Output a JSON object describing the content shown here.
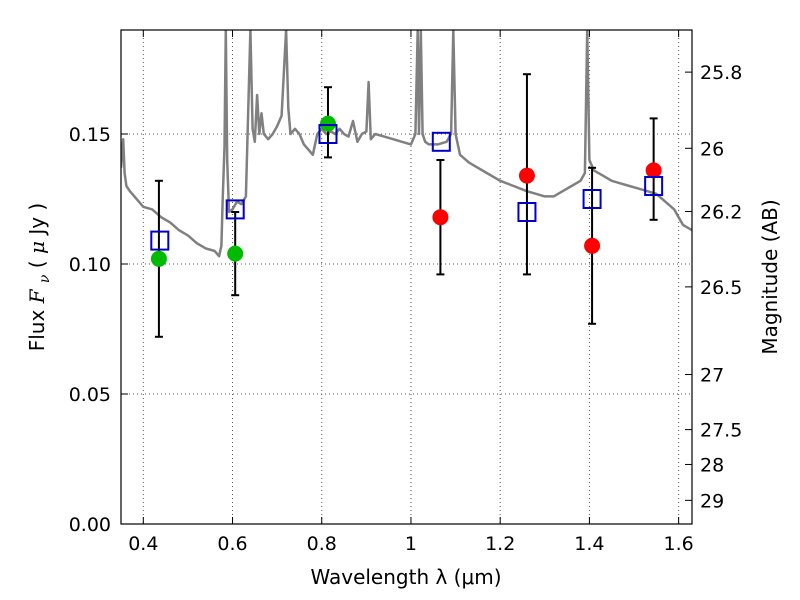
{
  "chart_data": {
    "type": "scatter",
    "xlabel": "Wavelength  λ (μm)",
    "ylabel": "Flux  F_ν  ( μJy )",
    "ylabel_parts": [
      "Flux  ",
      "F",
      "ν",
      "  ( ",
      "μ",
      "Jy )"
    ],
    "y2label": "Magnitude (AB)",
    "xlim": [
      0.35,
      1.63
    ],
    "ylim": [
      0.0,
      0.19
    ],
    "grid": true,
    "x_ticks": [
      0.4,
      0.6,
      0.8,
      1.0,
      1.2,
      1.4,
      1.6
    ],
    "x_tick_labels": [
      "0.4",
      "0.6",
      "0.8",
      "1",
      "1.2",
      "1.4",
      "1.6"
    ],
    "y_ticks": [
      0.0,
      0.05,
      0.1,
      0.15
    ],
    "y_tick_labels": [
      "0.00",
      "0.05",
      "0.10",
      "0.15"
    ],
    "y2_tick_labels": [
      "25.8",
      "26",
      "26.2",
      "26.5",
      "27",
      "27.5",
      "28",
      "29"
    ],
    "y2_tick_flux": [
      0.1738,
      0.1445,
      0.1202,
      0.0912,
      0.0575,
      0.0363,
      0.0229,
      0.0091
    ],
    "colors": {
      "model": "#808080",
      "green_points": "#00bb00",
      "red_points": "#ff0000",
      "model_boxes": "#0000cc",
      "errorbars": "#000000",
      "grid": "#555555"
    },
    "series": [
      {
        "marker": "circle-green",
        "color": "#00bb00",
        "points": [
          {
            "x": 0.435,
            "y": 0.102,
            "err_lo": 0.072,
            "err_hi": 0.132
          },
          {
            "x": 0.606,
            "y": 0.104,
            "err_lo": 0.088,
            "err_hi": 0.12
          },
          {
            "x": 0.814,
            "y": 0.154,
            "err_lo": 0.141,
            "err_hi": 0.168
          }
        ]
      },
      {
        "marker": "circle-red",
        "color": "#ff0000",
        "points": [
          {
            "x": 1.066,
            "y": 0.118,
            "err_lo": 0.096,
            "err_hi": 0.14
          },
          {
            "x": 1.26,
            "y": 0.134,
            "err_lo": 0.096,
            "err_hi": 0.173
          },
          {
            "x": 1.406,
            "y": 0.107,
            "err_lo": 0.077,
            "err_hi": 0.137
          },
          {
            "x": 1.544,
            "y": 0.136,
            "err_lo": 0.117,
            "err_hi": 0.156
          }
        ]
      },
      {
        "marker": "square-open-blue",
        "color": "#0000cc",
        "points": [
          {
            "x": 0.437,
            "y": 0.109
          },
          {
            "x": 0.606,
            "y": 0.121
          },
          {
            "x": 0.814,
            "y": 0.15
          },
          {
            "x": 1.068,
            "y": 0.147
          },
          {
            "x": 1.26,
            "y": 0.12
          },
          {
            "x": 1.406,
            "y": 0.125
          },
          {
            "x": 1.544,
            "y": 0.13
          }
        ]
      }
    ],
    "model_spectrum": {
      "color": "#808080",
      "points": [
        [
          0.35,
          0.137
        ],
        [
          0.355,
          0.148
        ],
        [
          0.358,
          0.135
        ],
        [
          0.362,
          0.13
        ],
        [
          0.37,
          0.128
        ],
        [
          0.38,
          0.126
        ],
        [
          0.39,
          0.124
        ],
        [
          0.4,
          0.122
        ],
        [
          0.42,
          0.121
        ],
        [
          0.44,
          0.118
        ],
        [
          0.46,
          0.116
        ],
        [
          0.48,
          0.113
        ],
        [
          0.5,
          0.111
        ],
        [
          0.52,
          0.108
        ],
        [
          0.54,
          0.106
        ],
        [
          0.56,
          0.105
        ],
        [
          0.57,
          0.103
        ],
        [
          0.575,
          0.107
        ],
        [
          0.578,
          0.125
        ],
        [
          0.582,
          0.145
        ],
        [
          0.585,
          0.19
        ],
        [
          0.588,
          0.14
        ],
        [
          0.592,
          0.12
        ],
        [
          0.6,
          0.121
        ],
        [
          0.61,
          0.124
        ],
        [
          0.62,
          0.123
        ],
        [
          0.63,
          0.126
        ],
        [
          0.64,
          0.19
        ],
        [
          0.645,
          0.152
        ],
        [
          0.65,
          0.147
        ],
        [
          0.655,
          0.165
        ],
        [
          0.66,
          0.15
        ],
        [
          0.665,
          0.158
        ],
        [
          0.67,
          0.15
        ],
        [
          0.68,
          0.148
        ],
        [
          0.69,
          0.15
        ],
        [
          0.7,
          0.153
        ],
        [
          0.71,
          0.157
        ],
        [
          0.72,
          0.19
        ],
        [
          0.725,
          0.16
        ],
        [
          0.73,
          0.15
        ],
        [
          0.74,
          0.152
        ],
        [
          0.75,
          0.15
        ],
        [
          0.76,
          0.146
        ],
        [
          0.77,
          0.144
        ],
        [
          0.78,
          0.142
        ],
        [
          0.79,
          0.15
        ],
        [
          0.8,
          0.152
        ],
        [
          0.81,
          0.15
        ],
        [
          0.82,
          0.151
        ],
        [
          0.83,
          0.15
        ],
        [
          0.84,
          0.152
        ],
        [
          0.85,
          0.15
        ],
        [
          0.86,
          0.149
        ],
        [
          0.87,
          0.155
        ],
        [
          0.88,
          0.147
        ],
        [
          0.89,
          0.15
        ],
        [
          0.9,
          0.151
        ],
        [
          0.905,
          0.17
        ],
        [
          0.91,
          0.148
        ],
        [
          0.92,
          0.15
        ],
        [
          0.94,
          0.149
        ],
        [
          0.96,
          0.148
        ],
        [
          0.98,
          0.147
        ],
        [
          1.0,
          0.146
        ],
        [
          1.01,
          0.15
        ],
        [
          1.015,
          0.19
        ],
        [
          1.018,
          0.15
        ],
        [
          1.022,
          0.19
        ],
        [
          1.026,
          0.15
        ],
        [
          1.032,
          0.147
        ],
        [
          1.04,
          0.146
        ],
        [
          1.06,
          0.146
        ],
        [
          1.08,
          0.147
        ],
        [
          1.09,
          0.15
        ],
        [
          1.095,
          0.19
        ],
        [
          1.1,
          0.15
        ],
        [
          1.11,
          0.142
        ],
        [
          1.13,
          0.139
        ],
        [
          1.15,
          0.137
        ],
        [
          1.17,
          0.135
        ],
        [
          1.2,
          0.132
        ],
        [
          1.23,
          0.13
        ],
        [
          1.26,
          0.128
        ],
        [
          1.28,
          0.127
        ],
        [
          1.3,
          0.126
        ],
        [
          1.32,
          0.126
        ],
        [
          1.34,
          0.128
        ],
        [
          1.36,
          0.13
        ],
        [
          1.38,
          0.132
        ],
        [
          1.39,
          0.135
        ],
        [
          1.395,
          0.19
        ],
        [
          1.4,
          0.14
        ],
        [
          1.41,
          0.136
        ],
        [
          1.43,
          0.134
        ],
        [
          1.45,
          0.132
        ],
        [
          1.47,
          0.131
        ],
        [
          1.49,
          0.13
        ],
        [
          1.51,
          0.129
        ],
        [
          1.53,
          0.128
        ],
        [
          1.55,
          0.127
        ],
        [
          1.57,
          0.124
        ],
        [
          1.59,
          0.121
        ],
        [
          1.6,
          0.118
        ],
        [
          1.61,
          0.115
        ],
        [
          1.62,
          0.114
        ],
        [
          1.63,
          0.113
        ]
      ]
    }
  }
}
